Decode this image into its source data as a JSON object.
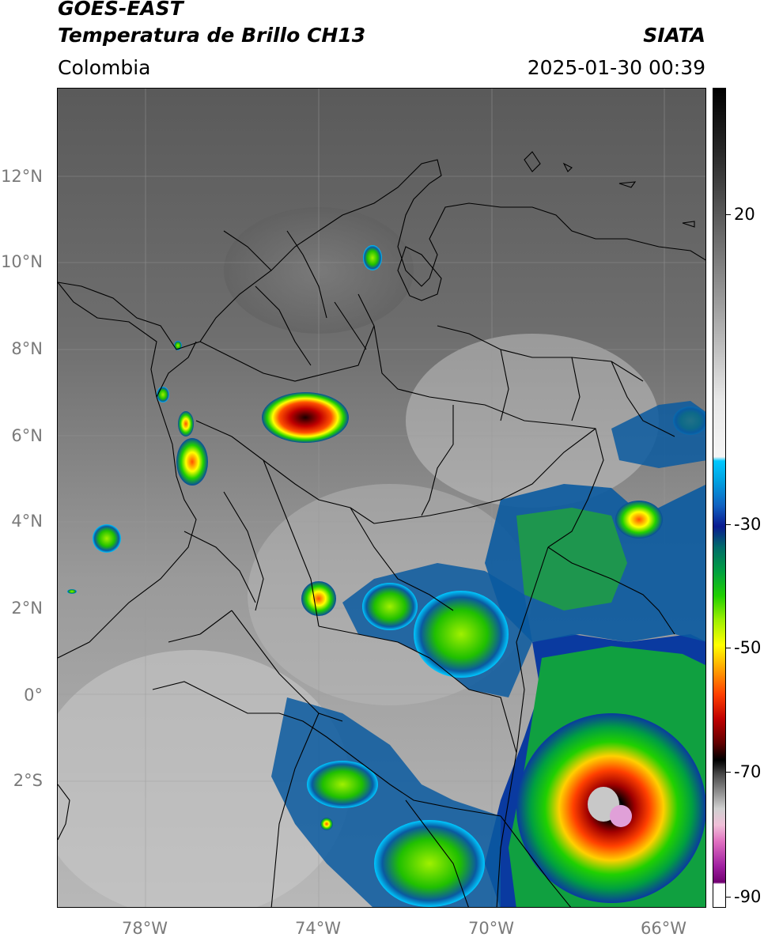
{
  "header": {
    "satellite": "GOES-EAST",
    "product": "Temperatura de Brillo CH13",
    "region": "Colombia",
    "agency": "SIATA",
    "datetime": "2025-01-30 00:39"
  },
  "map": {
    "lat_labels": [
      "12°N",
      "10°N",
      "8°N",
      "6°N",
      "4°N",
      "2°N",
      "0°",
      "2°S"
    ],
    "lon_labels": [
      "78°W",
      "74°W",
      "70°W",
      "66°W"
    ]
  },
  "colorbar": {
    "labels": [
      "20",
      "-30",
      "-50",
      "-70",
      "-90"
    ],
    "colors": {
      "warm_gray": "#5a5a5a",
      "cold_cyan": "#00c8ff",
      "deep_blue": "#0a1a90",
      "green": "#20d000",
      "yellow": "#ffff00",
      "red": "#c00000",
      "black": "#000000",
      "magenta": "#a020a0"
    }
  }
}
